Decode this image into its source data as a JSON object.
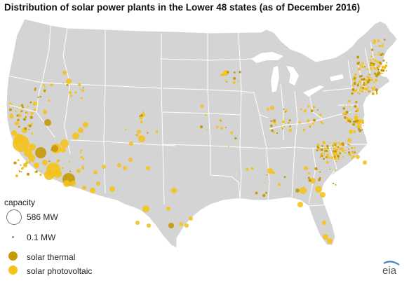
{
  "title": "Distribution of solar power plants in the Lower 48 states (as of December 2016)",
  "legend": {
    "heading": "capacity",
    "capacity_large": "586 MW",
    "capacity_small": "0.1 MW",
    "type_thermal": "solar thermal",
    "type_pv": "solar photovoltaic"
  },
  "colors": {
    "land": "#d4d4d4",
    "border": "#ffffff",
    "solar_thermal": "#c49a06",
    "solar_photovoltaic": "#f5c21b"
  },
  "logo": {
    "text": "eia",
    "icon": "eia-logo"
  }
}
